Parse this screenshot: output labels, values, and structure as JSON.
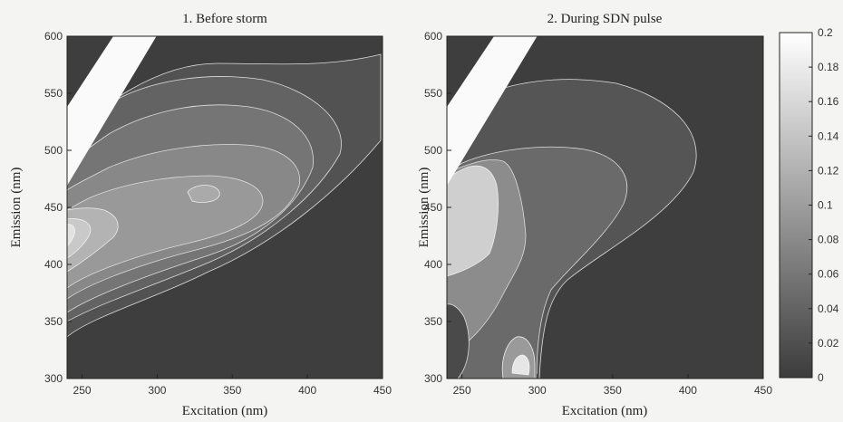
{
  "chart_data": [
    {
      "type": "heatmap",
      "subtype": "contour",
      "title": "1. Before storm",
      "xlabel": "Excitation (nm)",
      "ylabel": "Emission (nm)",
      "xlim": [
        240,
        450
      ],
      "ylim": [
        300,
        600
      ],
      "xticks": [
        250,
        300,
        350,
        400,
        450
      ],
      "yticks": [
        300,
        350,
        400,
        450,
        500,
        550,
        600
      ],
      "contour_levels": [
        0.02,
        0.04,
        0.06,
        0.08,
        0.1,
        0.12,
        0.14,
        0.16,
        0.18
      ],
      "peaks": [
        {
          "excitation": 240,
          "emission": 440,
          "value": 0.17
        },
        {
          "excitation": 335,
          "emission": 462,
          "value": 0.1
        }
      ],
      "masked_region": "Rayleigh scatter band (upper-left, emission ≈ excitation×2)"
    },
    {
      "type": "heatmap",
      "subtype": "contour",
      "title": "2. During SDN pulse",
      "xlabel": "Excitation (nm)",
      "ylabel": "Emission (nm)",
      "xlim": [
        240,
        450
      ],
      "ylim": [
        300,
        600
      ],
      "xticks": [
        250,
        300,
        350,
        400,
        450
      ],
      "yticks": [
        300,
        350,
        400,
        450,
        500,
        550,
        600
      ],
      "contour_levels": [
        0.04,
        0.06,
        0.08,
        0.12
      ],
      "peaks": [
        {
          "excitation": 250,
          "emission": 445,
          "value": 0.15
        },
        {
          "excitation": 273,
          "emission": 312,
          "value": 0.16
        }
      ],
      "masked_region": "Rayleigh scatter band (upper-left, emission ≈ excitation×2)"
    }
  ],
  "colorbar": {
    "min": 0,
    "max": 0.2,
    "tick_labels": [
      "0.2",
      "0.18",
      "0.16",
      "0.14",
      "0.12",
      "0.1",
      "0.08",
      "0.06",
      "0.04",
      "0.02",
      "0"
    ],
    "colors": {
      "low": "#3c3c3c",
      "high": "#ffffff"
    }
  }
}
